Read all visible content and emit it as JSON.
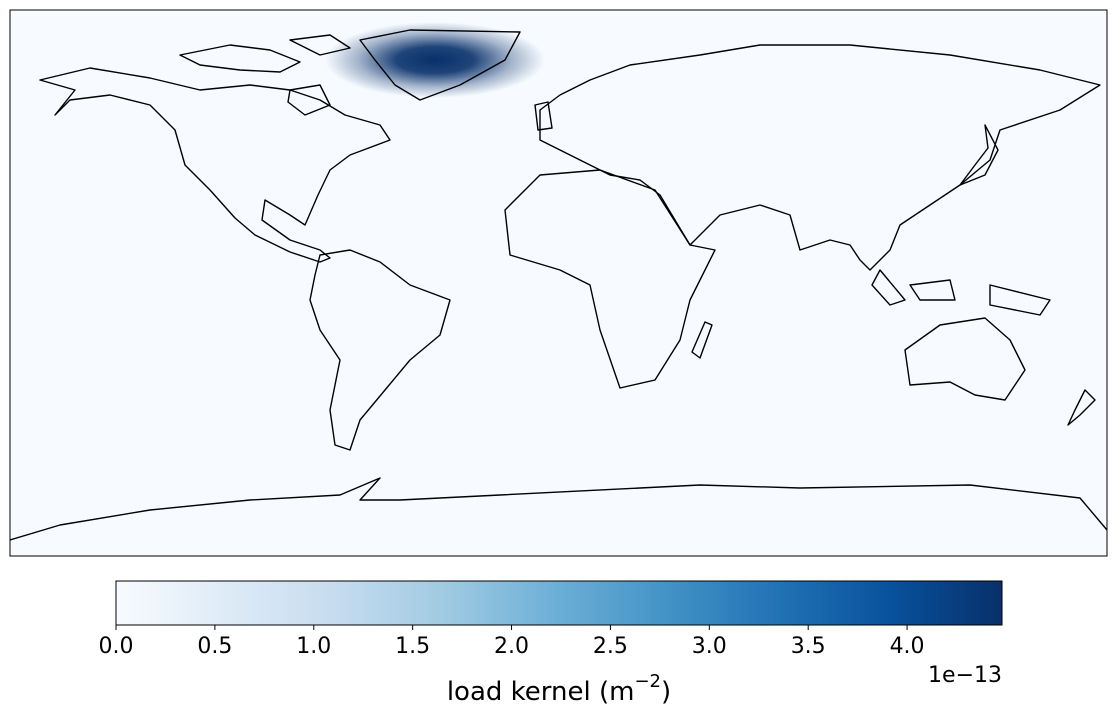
{
  "map": {
    "projection": "plate-carree",
    "background": "#f7fbff",
    "coast_color": "#000000"
  },
  "colorbar": {
    "clim": [
      0,
      4.48
    ],
    "ticks": [
      {
        "value": 0,
        "label": "0.0"
      },
      0.5,
      {
        "value": 1,
        "label": "1.0"
      },
      1.5,
      {
        "value": 2,
        "label": "2.0"
      },
      2.5,
      {
        "value": 3,
        "label": "3.0"
      },
      3.5,
      {
        "value": 4,
        "label": "4.0"
      }
    ],
    "offset_text": "1e−13",
    "label": {
      "text": "load kernel (m",
      "superscript": "−2",
      "suffix": ")"
    },
    "colormap": [
      "#f7fbff",
      "#deebf7",
      "#c6dbef",
      "#9ecae1",
      "#6baed6",
      "#4292c6",
      "#2171b5",
      "#08519c",
      "#08306b"
    ]
  }
}
